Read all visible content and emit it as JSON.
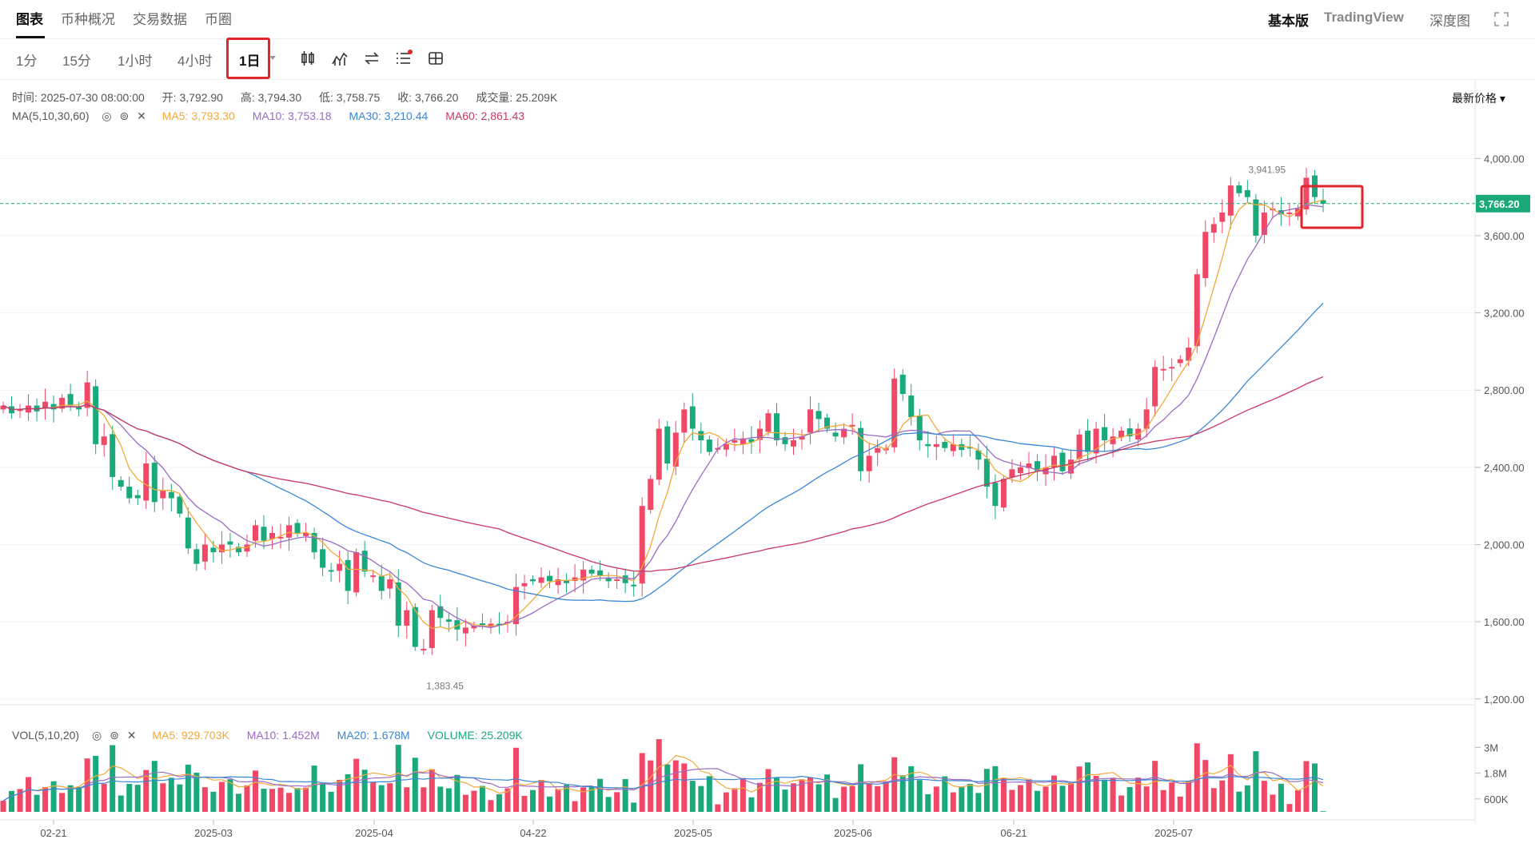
{
  "tabs": {
    "left": [
      "图表",
      "币种概况",
      "交易数据",
      "币圈"
    ],
    "right": [
      "基本版",
      "TradingView",
      "深度图"
    ]
  },
  "toolbar": {
    "timeframes": [
      "1分",
      "15分",
      "1小时",
      "4小时",
      "1日"
    ],
    "active_timeframe": "1日",
    "tools": [
      "candlestick-type-icon",
      "indicator-icon",
      "swap-icon",
      "list-settings-icon",
      "layout-icon"
    ],
    "price_mode": "最新价格 ▾"
  },
  "info": {
    "time": "时间: 2025-07-30 08:00:00",
    "open": "开: 3,792.90",
    "high": "高: 3,794.30",
    "low": "低: 3,758.75",
    "close": "收: 3,766.20",
    "volume": "成交量: 25.209K"
  },
  "ma_legend": {
    "label": "MA(5,10,30,60)",
    "ma5": "MA5: 3,793.30",
    "ma10": "MA10: 3,753.18",
    "ma30": "MA30: 3,210.44",
    "ma60": "MA60: 2,861.43"
  },
  "vol_legend": {
    "label": "VOL(5,10,20)",
    "ma5": "MA5: 929.703K",
    "ma10": "MA10: 1.452M",
    "ma20": "MA20: 1.678M",
    "volume": "VOLUME: 25.209K"
  },
  "colors": {
    "up": "#f04866",
    "down": "#1aa97a",
    "ma5": "#f2a93b",
    "ma10": "#9b6bc4",
    "ma30": "#3a86d6",
    "ma60": "#c9385f",
    "accent": "#e0262b"
  },
  "chart_data": {
    "type": "candlestick",
    "price_axis": [
      "4,000.00",
      "3,600.00",
      "3,200.00",
      "2,800.00",
      "2,400.00",
      "2,000.00",
      "1,600.00",
      "1,200.00"
    ],
    "price_ylim": [
      1200,
      4000
    ],
    "volume_axis": [
      "3M",
      "1.8M",
      "600K"
    ],
    "time_axis": [
      "02-21",
      "2025-03",
      "2025-04",
      "04-22",
      "2025-05",
      "2025-06",
      "06-21",
      "2025-07"
    ],
    "current_price": 3766.2,
    "current_price_label": "3,766.20",
    "high_label": "3,941.95",
    "low_label": "1,383.45",
    "high_value": 3941.95,
    "low_value": 1383.45,
    "closes": [
      2720,
      2680,
      2700,
      2720,
      2690,
      2740,
      2700,
      2760,
      2720,
      2700,
      2840,
      2520,
      2560,
      2350,
      2300,
      2240,
      2240,
      2420,
      2220,
      2280,
      2240,
      2160,
      1980,
      1900,
      2000,
      1960,
      2000,
      2000,
      1960,
      2000,
      2100,
      2020,
      2060,
      2040,
      2100,
      2060,
      2060,
      1960,
      1880,
      1860,
      1900,
      1760,
      1960,
      1860,
      1840,
      1760,
      1820,
      1580,
      1660,
      1470,
      1460,
      1660,
      1620,
      1600,
      1560,
      1570,
      1580,
      1590,
      1590,
      1580,
      1600,
      1780,
      1800,
      1810,
      1830,
      1810,
      1820,
      1800,
      1830,
      1870,
      1850,
      1840,
      1810,
      1820,
      1800,
      1790,
      2200,
      2340,
      2600,
      2420,
      2580,
      2700,
      2600,
      2540,
      2480,
      2500,
      2520,
      2540,
      2550,
      2530,
      2600,
      2680,
      2540,
      2520,
      2540,
      2560,
      2700,
      2650,
      2600,
      2560,
      2600,
      2620,
      2380,
      2460,
      2500,
      2500,
      2860,
      2780,
      2660,
      2540,
      2510,
      2520,
      2500,
      2520,
      2490,
      2500,
      2440,
      2300,
      2200,
      2340,
      2390,
      2400,
      2420,
      2380,
      2400,
      2460,
      2380,
      2440,
      2570,
      2480,
      2600,
      2540,
      2560,
      2590,
      2560,
      2600,
      2700,
      2920,
      2910,
      2920,
      2960,
      3020,
      3400,
      3620,
      3660,
      3720,
      3860,
      3820,
      3800,
      3600,
      3720,
      3740,
      3710,
      3720,
      3740,
      3900,
      3800,
      3766
    ],
    "volume_scale_M": [
      3.0,
      1.8,
      0.6
    ]
  }
}
